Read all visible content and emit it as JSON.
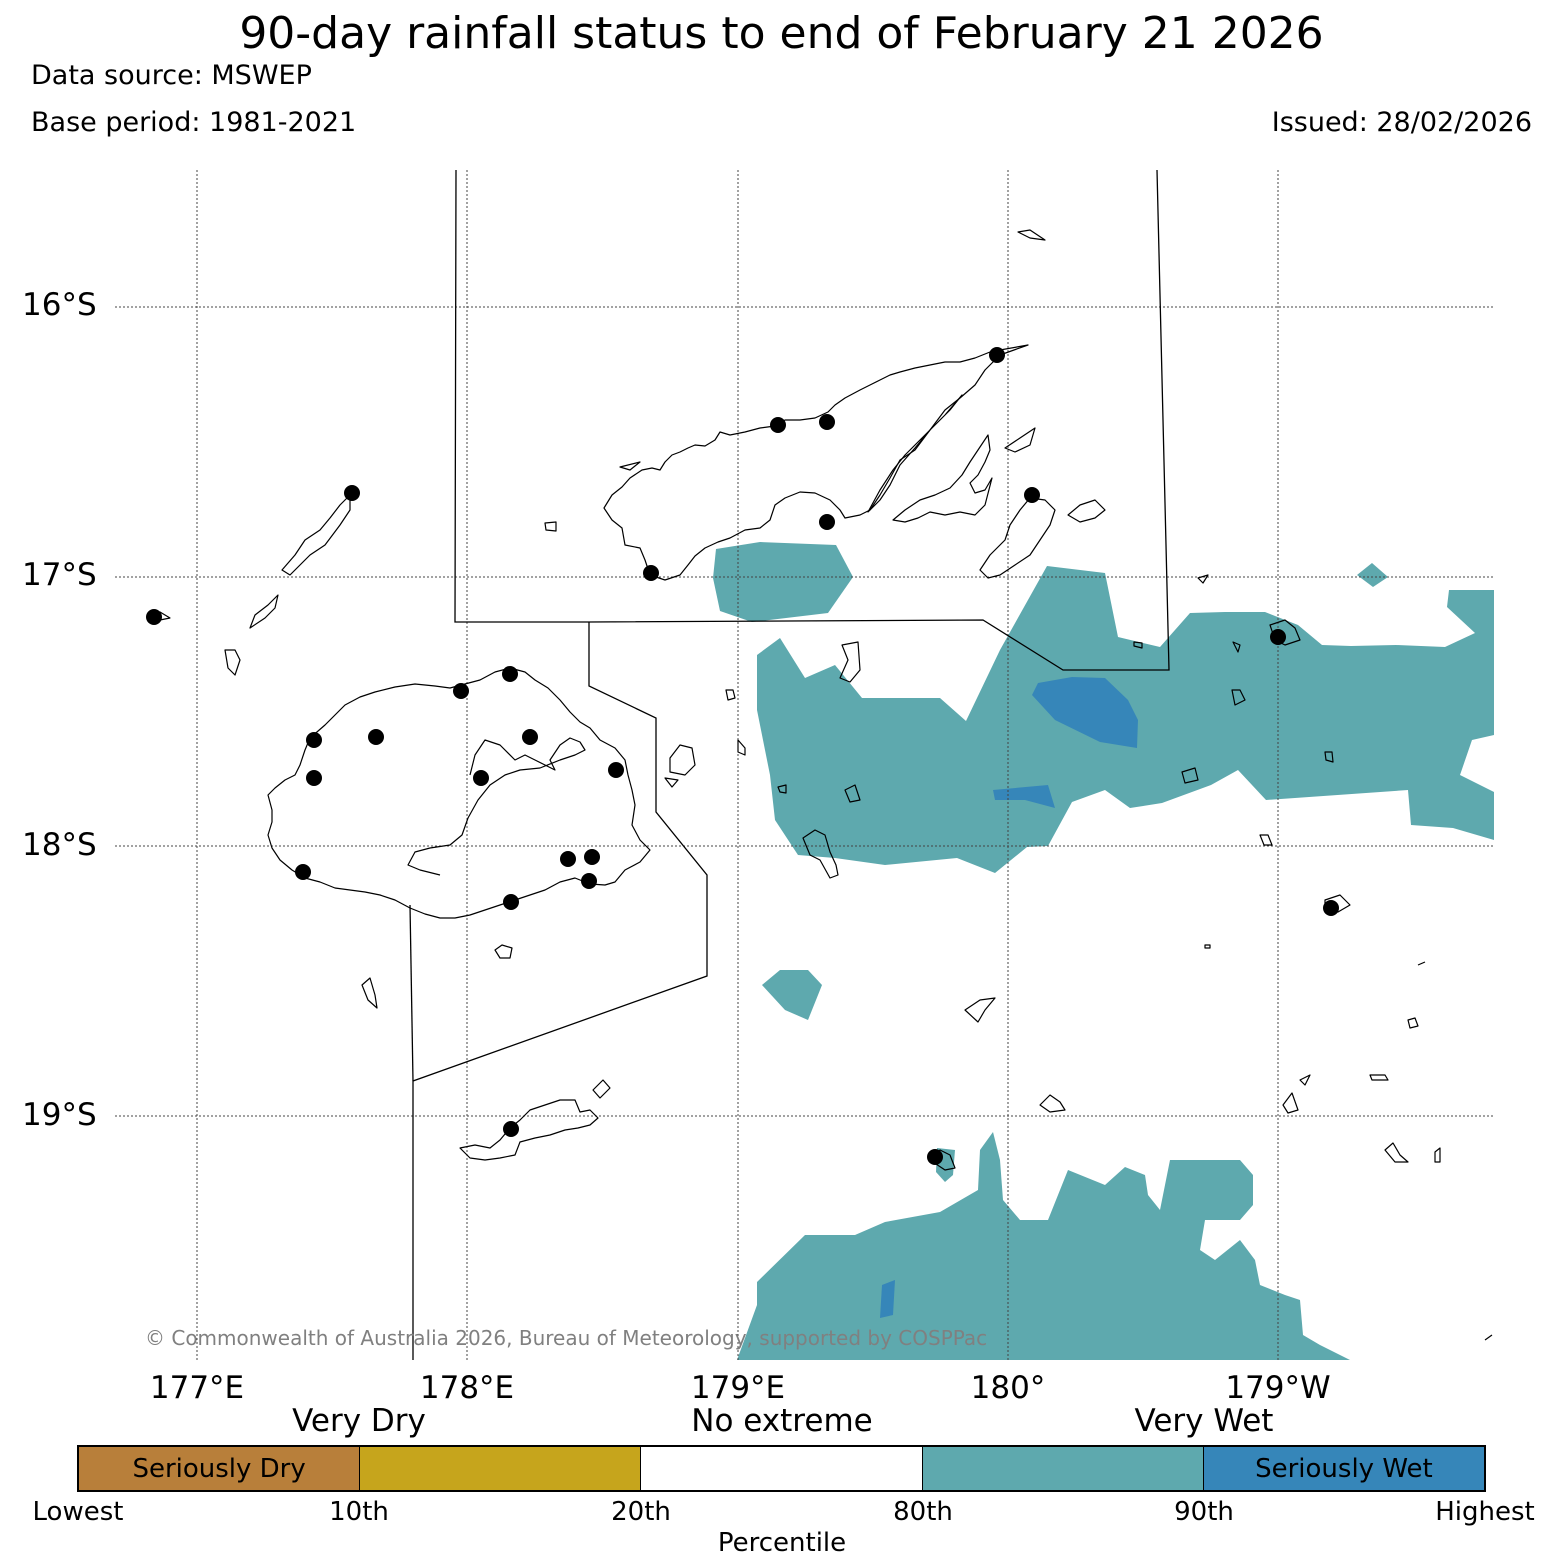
{
  "header": {
    "title": "90-day rainfall status to end of February 21 2026",
    "data_source": "Data source: MSWEP",
    "base_period": "Base period: 1981-2021",
    "issued": "Issued: 28/02/2026"
  },
  "map": {
    "lat_labels": [
      "16°S",
      "17°S",
      "18°S",
      "19°S"
    ],
    "lon_labels": [
      "177°E",
      "178°E",
      "179°E",
      "180°",
      "179°W"
    ],
    "copyright": "© Commonwealth of Australia 2026, Bureau of Meteorology, supported by COSPPac"
  },
  "legend": {
    "categories": [
      "Very Dry",
      "No extreme",
      "Very Wet"
    ],
    "segments": [
      {
        "label": "Seriously Dry",
        "color": "#b87f3a"
      },
      {
        "label": "",
        "color": "#c6a51c"
      },
      {
        "label": "",
        "color": "#ffffff"
      },
      {
        "label": "",
        "color": "#5ea9ae"
      },
      {
        "label": "Seriously Wet",
        "color": "#3686b9"
      }
    ],
    "percentiles": [
      "Lowest",
      "10th",
      "20th",
      "80th",
      "90th",
      "Highest"
    ],
    "axis_title": "Percentile"
  }
}
